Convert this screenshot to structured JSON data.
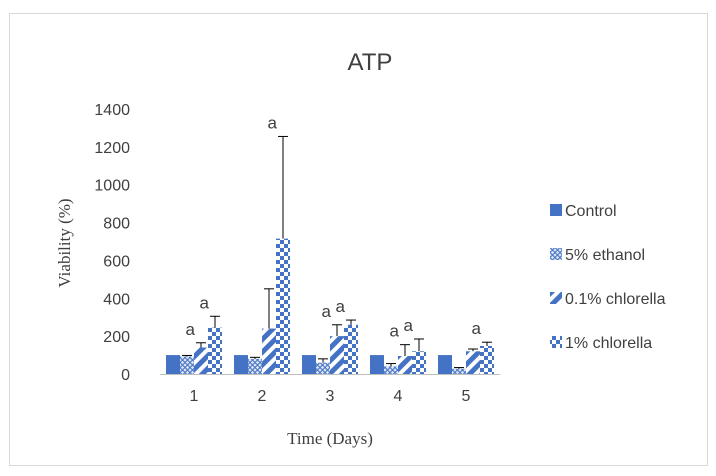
{
  "chart_data": {
    "type": "bar",
    "title": "ATP",
    "xlabel": "Time (Days)",
    "ylabel": "Viability  (%)",
    "ylim": [
      0,
      1400
    ],
    "yticks": [
      0,
      200,
      400,
      600,
      800,
      1000,
      1200,
      1400
    ],
    "grid": false,
    "legend_position": "right",
    "categories": [
      "1",
      "2",
      "3",
      "4",
      "5"
    ],
    "series": [
      {
        "name": "Control",
        "pattern": "solid",
        "color": "#4472c4",
        "values": [
          100,
          100,
          100,
          100,
          100
        ],
        "error": [
          0,
          0,
          0,
          0,
          0
        ],
        "labels": [
          "",
          "",
          "",
          "",
          ""
        ]
      },
      {
        "name": "5% ethanol",
        "pattern": "diamond-grid",
        "color": "#4472c4",
        "values": [
          92,
          80,
          60,
          40,
          28
        ],
        "error": [
          6,
          8,
          20,
          15,
          6
        ],
        "labels": [
          "",
          "",
          "",
          "",
          ""
        ]
      },
      {
        "name": "0.1% chlorella",
        "pattern": "wide-diagonal",
        "color": "#4472c4",
        "values": [
          140,
          240,
          200,
          95,
          120
        ],
        "error": [
          25,
          210,
          60,
          60,
          12
        ],
        "labels": [
          "a",
          "",
          "a",
          "a",
          ""
        ]
      },
      {
        "name": "1% chlorella",
        "pattern": "checker",
        "color": "#4472c4",
        "values": [
          245,
          715,
          260,
          120,
          148
        ],
        "error": [
          60,
          540,
          25,
          65,
          20
        ],
        "labels": [
          "a",
          "a",
          "a",
          "a",
          "a"
        ]
      }
    ]
  }
}
